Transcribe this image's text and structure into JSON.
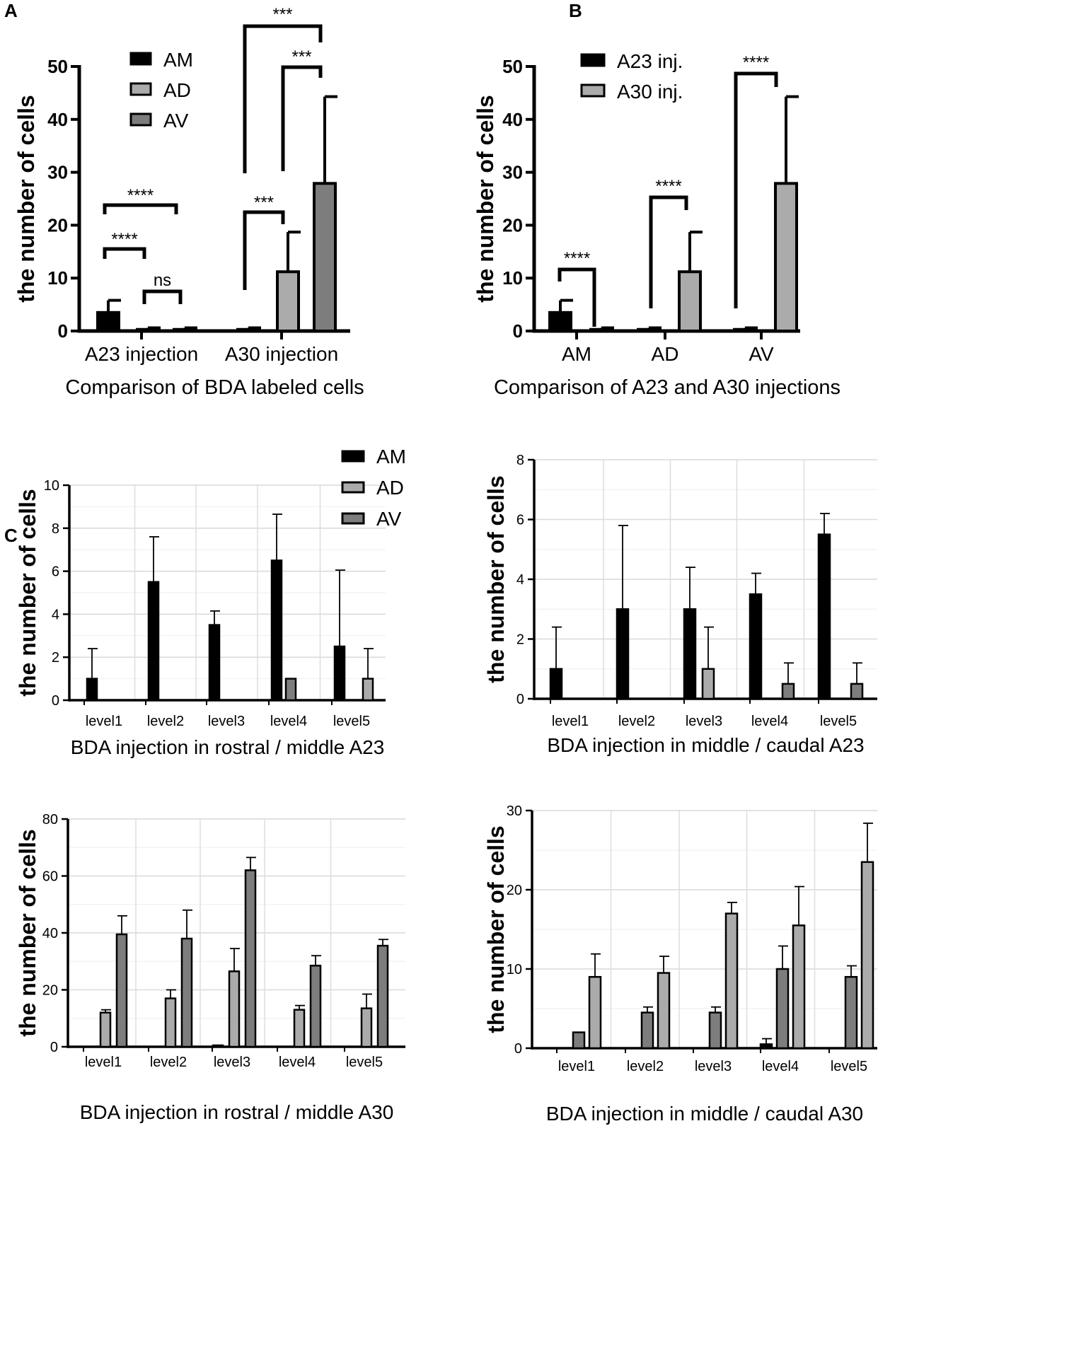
{
  "figure": {
    "panel_labels": [
      "A",
      "B",
      "C"
    ]
  },
  "colors": {
    "AM": "#000000",
    "AD": "#ababab",
    "AV": "#7d7d7d",
    "A23": "#000000",
    "A30": "#ababab"
  },
  "chart_data": [
    {
      "id": "A",
      "type": "bar",
      "title": "",
      "xlabel": "Comparison of BDA labeled cells",
      "ylabel": "the number of cells",
      "ylim": [
        0,
        50
      ],
      "yticks": [
        0,
        10,
        20,
        30,
        40,
        50
      ],
      "grid": false,
      "legend": "top-left",
      "categories": [
        "A23 injection",
        "A30 injection"
      ],
      "series": [
        {
          "name": "AM",
          "values": [
            3.5,
            0.3
          ],
          "errors": [
            2.3,
            0.3
          ]
        },
        {
          "name": "AD",
          "values": [
            0.3,
            11.2
          ],
          "errors": [
            0.3,
            7.5
          ]
        },
        {
          "name": "AV",
          "values": [
            0.3,
            27.9
          ],
          "errors": [
            0.3,
            16.4
          ]
        }
      ],
      "significance": [
        {
          "group": 0,
          "from": 0,
          "to": 1,
          "label": "****"
        },
        {
          "group": 0,
          "from": 0,
          "to": 2,
          "label": "****"
        },
        {
          "group": 0,
          "from": 1,
          "to": 2,
          "label": "ns"
        },
        {
          "group": 1,
          "from": 0,
          "to": 1,
          "label": "***"
        },
        {
          "group": 1,
          "from": 0,
          "to": 2,
          "label": "***"
        },
        {
          "group": 1,
          "from": 1,
          "to": 2,
          "label": "***"
        }
      ]
    },
    {
      "id": "B",
      "type": "bar",
      "title": "",
      "xlabel": "Comparison of A23 and A30 injections",
      "ylabel": "the number of cells",
      "ylim": [
        0,
        50
      ],
      "yticks": [
        0,
        10,
        20,
        30,
        40,
        50
      ],
      "grid": false,
      "legend": "top-left",
      "categories": [
        "AM",
        "AD",
        "AV"
      ],
      "series": [
        {
          "name": "A23 inj.",
          "values": [
            3.5,
            0.3,
            0.3
          ],
          "errors": [
            2.3,
            0.3,
            0.3
          ]
        },
        {
          "name": "A30 inj.",
          "values": [
            0.3,
            11.2,
            27.9
          ],
          "errors": [
            0.3,
            7.5,
            16.4
          ]
        }
      ],
      "significance": [
        {
          "group": 0,
          "from": 0,
          "to": 1,
          "label": "****"
        },
        {
          "group": 1,
          "from": 0,
          "to": 1,
          "label": "****"
        },
        {
          "group": 2,
          "from": 0,
          "to": 1,
          "label": "****"
        }
      ]
    },
    {
      "id": "C1",
      "type": "bar",
      "title": "",
      "xlabel": "BDA injection in rostral / middle A23",
      "ylabel": "the number of cells",
      "ylim": [
        0,
        10
      ],
      "yticks": [
        0,
        2,
        4,
        6,
        8,
        10
      ],
      "grid": true,
      "legend": "top-right",
      "categories": [
        "level1",
        "level2",
        "level3",
        "level4",
        "level5"
      ],
      "series": [
        {
          "name": "AM",
          "values": [
            1,
            5.5,
            3.5,
            6.5,
            2.5
          ],
          "errors": [
            1.4,
            2.1,
            0.65,
            2.15,
            3.55
          ]
        },
        {
          "name": "AD",
          "values": [
            0,
            0,
            0,
            0,
            1
          ],
          "errors": [
            0,
            0,
            0,
            0,
            1.4
          ]
        },
        {
          "name": "AV",
          "values": [
            0,
            0,
            0,
            1,
            0
          ],
          "errors": [
            0,
            0,
            0,
            0,
            0
          ]
        }
      ]
    },
    {
      "id": "C2",
      "type": "bar",
      "title": "",
      "xlabel": "BDA injection in middle / caudal A23",
      "ylabel": "the number of cells",
      "ylim": [
        0,
        8
      ],
      "yticks": [
        0,
        2,
        4,
        6,
        8
      ],
      "grid": true,
      "legend": "",
      "categories": [
        "level1",
        "level2",
        "level3",
        "level4",
        "level5"
      ],
      "series": [
        {
          "name": "AM",
          "values": [
            1,
            3,
            3,
            3.5,
            5.5
          ],
          "errors": [
            1.4,
            2.8,
            1.4,
            0.7,
            0.7
          ]
        },
        {
          "name": "AD",
          "values": [
            0,
            0,
            1,
            0,
            0
          ],
          "errors": [
            0,
            0,
            1.4,
            0,
            0
          ]
        },
        {
          "name": "AV",
          "values": [
            0,
            0,
            0,
            0.5,
            0.5
          ],
          "errors": [
            0,
            0,
            0,
            0.7,
            0.7
          ]
        }
      ]
    },
    {
      "id": "C3",
      "type": "bar",
      "title": "",
      "xlabel": "BDA injection in rostral / middle A30",
      "ylabel": "the number of cells",
      "ylim": [
        0,
        80
      ],
      "yticks": [
        0,
        20,
        40,
        60,
        80
      ],
      "grid": true,
      "legend": "",
      "categories": [
        "level1",
        "level2",
        "level3",
        "level4",
        "level5"
      ],
      "series": [
        {
          "name": "AM",
          "values": [
            0,
            0,
            0.5,
            0,
            0
          ],
          "errors": [
            0,
            0,
            0,
            0,
            0
          ]
        },
        {
          "name": "AD",
          "values": [
            12,
            17,
            26.5,
            13,
            13.5
          ],
          "errors": [
            1,
            3,
            8,
            1.5,
            5
          ]
        },
        {
          "name": "AV",
          "values": [
            39.5,
            38,
            62,
            28.5,
            35.5
          ],
          "errors": [
            6.5,
            10,
            4.5,
            3.5,
            2.2
          ]
        }
      ]
    },
    {
      "id": "C4",
      "type": "bar",
      "title": "",
      "xlabel": "BDA injection in middle / caudal A30",
      "ylabel": "the number of cells",
      "ylim": [
        0,
        30
      ],
      "yticks": [
        0,
        10,
        20,
        30
      ],
      "grid": true,
      "legend": "",
      "categories": [
        "level1",
        "level2",
        "level3",
        "level4",
        "level5"
      ],
      "series": [
        {
          "name": "AM",
          "values": [
            0,
            0,
            0,
            0.5,
            0
          ],
          "errors": [
            0,
            0,
            0,
            0.7,
            0
          ]
        },
        {
          "name": "AV",
          "values": [
            2,
            4.5,
            4.5,
            10,
            9
          ],
          "errors": [
            0,
            0.7,
            0.7,
            2.9,
            1.4
          ]
        },
        {
          "name": "AD",
          "values": [
            9,
            9.5,
            17,
            15.5,
            23.5
          ],
          "errors": [
            2.9,
            2.1,
            1.4,
            4.9,
            4.9
          ]
        }
      ]
    }
  ]
}
